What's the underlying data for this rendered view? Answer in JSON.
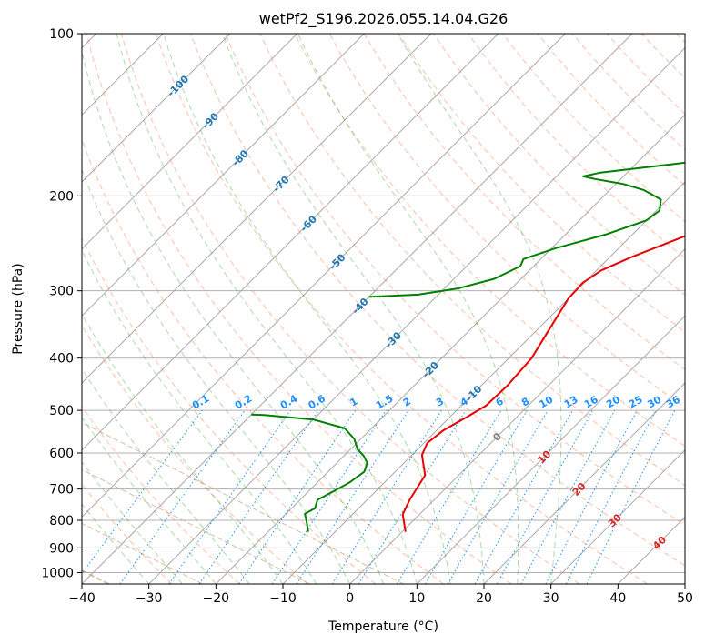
{
  "chart_data": {
    "type": "line",
    "title": "wetPf2_S196.2026.055.14.04.G26",
    "xlabel": "Temperature (°C)",
    "ylabel": "Pressure (hPa)",
    "xlim": [
      -40,
      50
    ],
    "ylim": [
      1050,
      100
    ],
    "x_ticks": [
      -40,
      -30,
      -20,
      -10,
      0,
      10,
      20,
      30,
      40,
      50
    ],
    "x_tick_labels": [
      "−40",
      "−30",
      "−20",
      "−10",
      "0",
      "10",
      "20",
      "30",
      "40",
      "50"
    ],
    "y_ticks": [
      100,
      200,
      300,
      400,
      500,
      600,
      700,
      800,
      900,
      1000
    ],
    "y_tick_labels": [
      "100",
      "200",
      "300",
      "400",
      "500",
      "600",
      "700",
      "800",
      "900",
      "1000"
    ],
    "skew_deg": 45,
    "grid": true,
    "series": [
      {
        "name": "Temperature",
        "color": "#e60000",
        "points": [
          [
            0.5,
            840
          ],
          [
            -2.5,
            780
          ],
          [
            -3.7,
            730
          ],
          [
            -5.0,
            660
          ],
          [
            -8.5,
            605
          ],
          [
            -9.5,
            575
          ],
          [
            -9.0,
            545
          ],
          [
            -7.5,
            515
          ],
          [
            -6.3,
            490
          ],
          [
            -6.1,
            450
          ],
          [
            -6.6,
            400
          ],
          [
            -8.4,
            350
          ],
          [
            -10.0,
            310
          ],
          [
            -10.2,
            290
          ],
          [
            -9.3,
            275
          ],
          [
            -6.8,
            260
          ],
          [
            -2.5,
            240
          ],
          [
            1.0,
            225
          ],
          [
            5.0,
            210
          ],
          [
            7.7,
            200
          ],
          [
            10.2,
            190
          ],
          [
            11.7,
            178
          ],
          [
            12.8,
            165
          ],
          [
            13.4,
            157
          ],
          [
            14.5,
            150
          ],
          [
            16.0,
            145
          ],
          [
            19.5,
            135
          ],
          [
            23.0,
            126
          ],
          [
            26.3,
            118
          ],
          [
            28.8,
            113
          ],
          [
            31.1,
            108
          ],
          [
            32.3,
            104
          ],
          [
            32.7,
            100
          ]
        ]
      },
      {
        "name": "Dewpoint",
        "color": "#008000",
        "points": [
          [
            -14.0,
            840
          ],
          [
            -16.0,
            800
          ],
          [
            -17.2,
            778
          ],
          [
            -16.5,
            760
          ],
          [
            -17.4,
            733
          ],
          [
            -16.2,
            705
          ],
          [
            -15.2,
            680
          ],
          [
            -14.6,
            650
          ],
          [
            -15.5,
            626
          ],
          [
            -17.0,
            608
          ],
          [
            -19.0,
            590
          ],
          [
            -21.0,
            565
          ],
          [
            -24.0,
            540
          ],
          [
            -30.0,
            520
          ],
          [
            -38.0,
            510
          ],
          [
            -40.0,
            509
          ]
        ]
      },
      {
        "name": "Dewpoint (upper)",
        "color": "#008000",
        "points": [
          [
            -40.0,
            308
          ],
          [
            -33.0,
            305
          ],
          [
            -28.0,
            297
          ],
          [
            -24.0,
            285
          ],
          [
            -22.0,
            270
          ],
          [
            -22.6,
            262
          ],
          [
            -19.4,
            250
          ],
          [
            -14.0,
            236
          ],
          [
            -10.0,
            222
          ],
          [
            -9.5,
            213
          ],
          [
            -11.0,
            203
          ],
          [
            -15.0,
            195
          ],
          [
            -19.0,
            190
          ],
          [
            -24.0,
            186
          ],
          [
            -26.0,
            184
          ],
          [
            -24.0,
            181
          ],
          [
            -19.5,
            178
          ],
          [
            -13.5,
            174
          ],
          [
            -8.5,
            170
          ],
          [
            -6.0,
            166
          ],
          [
            -5.5,
            160
          ],
          [
            -7.2,
            147
          ],
          [
            -7.6,
            138
          ],
          [
            -7.6,
            130
          ],
          [
            -8.5,
            120
          ],
          [
            -10.5,
            113
          ],
          [
            -12.3,
            107
          ],
          [
            -12.5,
            103
          ],
          [
            -11.4,
            100
          ]
        ]
      }
    ],
    "dry_adiabats": {
      "color": "#ff7f50",
      "potential_temperatures_c": [
        -30,
        -20,
        -10,
        0,
        10,
        20,
        30,
        40,
        50,
        60,
        70,
        80,
        90,
        100,
        110,
        120,
        130,
        140,
        150,
        160,
        170,
        180,
        190,
        200
      ]
    },
    "moist_adiabats": {
      "color": "#2ca02c",
      "start_temperatures_c_at_1000": [
        -30,
        -25,
        -20,
        -15,
        -10,
        -5,
        0,
        5,
        10,
        15,
        20,
        25,
        30
      ]
    },
    "isohumes": {
      "color": "#1e90ff",
      "labels": [
        "0.1",
        "0.2",
        "0.4",
        "0.6",
        "1",
        "1.5",
        "2",
        "3",
        "4",
        "6",
        "8",
        "10",
        "13",
        "16",
        "20",
        "25",
        "30",
        "36"
      ],
      "mixing_ratios_gkg": [
        0.1,
        0.2,
        0.4,
        0.6,
        1,
        1.5,
        2,
        3,
        4,
        6,
        8,
        10,
        13,
        16,
        20,
        25,
        30,
        36
      ]
    },
    "isotherm_labels": {
      "cold_color": "#1f77b4",
      "warm_color": "#d62728",
      "zero_color": "#808080",
      "cold_labels": [
        "-100",
        "-90",
        "-80",
        "-70",
        "-60",
        "-50",
        "-40",
        "-30",
        "-20",
        "-10"
      ],
      "cold_values": [
        -100,
        -90,
        -80,
        -70,
        -60,
        -50,
        -40,
        -30,
        -20,
        -10
      ],
      "cold_pressures": [
        125,
        145,
        170,
        190,
        225,
        265,
        320,
        370,
        420,
        465
      ],
      "zero_label": "0",
      "warm_labels": [
        "10",
        "20",
        "30",
        "40"
      ],
      "warm_values": [
        10,
        20,
        30,
        40
      ],
      "warm_pressures": [
        610,
        700,
        800,
        880
      ]
    },
    "curved_isolines": {
      "color": "#c8a882",
      "note": "faint curved background isolines"
    }
  }
}
